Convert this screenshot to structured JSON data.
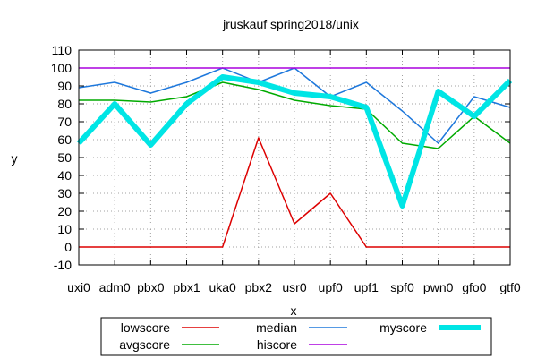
{
  "chart_data": {
    "type": "line",
    "title": "jruskauf spring2018/unix",
    "xlabel": "x",
    "ylabel": "y",
    "ylim": [
      -10,
      110
    ],
    "yticks": [
      -10,
      0,
      10,
      20,
      30,
      40,
      50,
      60,
      70,
      80,
      90,
      100,
      110
    ],
    "grid": true,
    "legend_position": "bottom, outside plot, boxed",
    "categories": [
      "uxi0",
      "adm0",
      "pbx0",
      "pbx1",
      "uka0",
      "pbx2",
      "usr0",
      "upf0",
      "upf1",
      "spf0",
      "pwn0",
      "gfo0",
      "gtf0"
    ],
    "series": [
      {
        "name": "lowscore",
        "color": "#dd0000",
        "width": "thin",
        "values": [
          0,
          0,
          0,
          0,
          0,
          61,
          13,
          30,
          0,
          0,
          0,
          0,
          0
        ]
      },
      {
        "name": "avgscore",
        "color": "#00aa00",
        "width": "thin",
        "values": [
          82,
          82,
          81,
          84,
          92,
          88,
          82,
          79,
          77,
          58,
          55,
          73,
          58
        ]
      },
      {
        "name": "median",
        "color": "#1e78dc",
        "width": "thin",
        "values": [
          89,
          92,
          86,
          92,
          100,
          92,
          100,
          84,
          92,
          76,
          58,
          84,
          78
        ]
      },
      {
        "name": "hiscore",
        "color": "#aa00dd",
        "width": "thin",
        "values": [
          100,
          100,
          100,
          100,
          100,
          100,
          100,
          100,
          100,
          100,
          100,
          100,
          100
        ]
      },
      {
        "name": "myscore",
        "color": "#00e5e5",
        "width": "thick",
        "values": [
          58,
          80,
          57,
          80,
          95,
          92,
          86,
          84,
          78,
          23,
          87,
          73,
          93
        ]
      }
    ]
  }
}
